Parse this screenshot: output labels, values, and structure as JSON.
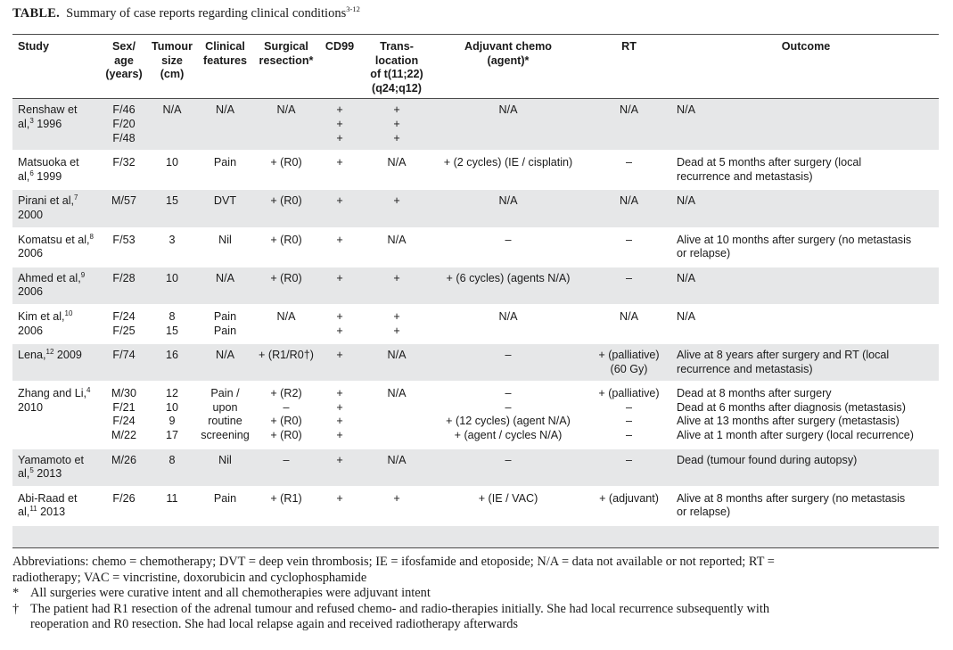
{
  "caption": {
    "label": "TABLE.",
    "text": "Summary of case reports regarding clinical conditions",
    "refs": "3-12"
  },
  "headers": {
    "study": [
      "Study"
    ],
    "sex_age": [
      "Sex/",
      "age",
      "(years)"
    ],
    "tumour_size": [
      "Tumour",
      "size",
      "(cm)"
    ],
    "clinical": [
      "Clinical",
      "features"
    ],
    "surgical": [
      "Surgical",
      "resection*"
    ],
    "cd99": [
      "CD99"
    ],
    "translocation": [
      "Trans-",
      "location",
      "of t(11;22)",
      "(q24;q12)"
    ],
    "chemo": [
      "Adjuvant chemo",
      "(agent)*"
    ],
    "rt": [
      "RT"
    ],
    "outcome": [
      "Outcome"
    ]
  },
  "rows": [
    {
      "study": [
        {
          "t": "Renshaw et"
        },
        {
          "t": "al,",
          "sup": "3",
          "after": " 1996"
        }
      ],
      "sex_age": [
        "F/46",
        "F/20",
        "F/48"
      ],
      "size": [
        "N/A"
      ],
      "clinical": [
        "N/A"
      ],
      "surgical": [
        "N/A"
      ],
      "cd99": [
        "+",
        "+",
        "+"
      ],
      "trans": [
        "+",
        "+",
        "+"
      ],
      "chemo": [
        "N/A"
      ],
      "rt": [
        "N/A"
      ],
      "outcome": [
        "N/A"
      ]
    },
    {
      "study": [
        {
          "t": "Matsuoka et"
        },
        {
          "t": "al,",
          "sup": "6",
          "after": " 1999"
        }
      ],
      "sex_age": [
        "F/32"
      ],
      "size": [
        "10"
      ],
      "clinical": [
        "Pain"
      ],
      "surgical": [
        "+ (R0)"
      ],
      "cd99": [
        "+"
      ],
      "trans": [
        "N/A"
      ],
      "chemo": [
        "+ (2 cycles) (IE / cisplatin)"
      ],
      "rt": [
        "–"
      ],
      "outcome": [
        "Dead at 5 months after surgery (local",
        "recurrence and metastasis)"
      ]
    },
    {
      "study": [
        {
          "t": "Pirani et al,",
          "sup": "7"
        },
        {
          "t": "2000"
        }
      ],
      "sex_age": [
        "M/57"
      ],
      "size": [
        "15"
      ],
      "clinical": [
        "DVT"
      ],
      "surgical": [
        "+ (R0)"
      ],
      "cd99": [
        "+"
      ],
      "trans": [
        "+"
      ],
      "chemo": [
        "N/A"
      ],
      "rt": [
        "N/A"
      ],
      "outcome": [
        "N/A"
      ]
    },
    {
      "study": [
        {
          "t": "Komatsu et al,",
          "sup": "8"
        },
        {
          "t": "2006"
        }
      ],
      "sex_age": [
        "F/53"
      ],
      "size": [
        "3"
      ],
      "clinical": [
        "Nil"
      ],
      "surgical": [
        "+ (R0)"
      ],
      "cd99": [
        "+"
      ],
      "trans": [
        "N/A"
      ],
      "chemo": [
        "–"
      ],
      "rt": [
        "–"
      ],
      "outcome": [
        "Alive at 10 months after surgery (no metastasis",
        "or relapse)"
      ]
    },
    {
      "study": [
        {
          "t": "Ahmed et al,",
          "sup": "9"
        },
        {
          "t": "2006"
        }
      ],
      "sex_age": [
        "F/28"
      ],
      "size": [
        "10"
      ],
      "clinical": [
        "N/A"
      ],
      "surgical": [
        "+ (R0)"
      ],
      "cd99": [
        "+"
      ],
      "trans": [
        "+"
      ],
      "chemo": [
        "+ (6 cycles) (agents N/A)"
      ],
      "rt": [
        "–"
      ],
      "outcome": [
        "N/A"
      ]
    },
    {
      "study": [
        {
          "t": "Kim et al,",
          "sup": "10"
        },
        {
          "t": "2006"
        }
      ],
      "sex_age": [
        "F/24",
        "F/25"
      ],
      "size": [
        "8",
        "15"
      ],
      "clinical": [
        "Pain",
        "Pain"
      ],
      "surgical": [
        "N/A"
      ],
      "cd99": [
        "+",
        "+"
      ],
      "trans": [
        "+",
        "+"
      ],
      "chemo": [
        "N/A"
      ],
      "rt": [
        "N/A"
      ],
      "outcome": [
        "N/A"
      ]
    },
    {
      "study": [
        {
          "t": "Lena,",
          "sup": "12",
          "after": " 2009"
        }
      ],
      "sex_age": [
        "F/74"
      ],
      "size": [
        "16"
      ],
      "clinical": [
        "N/A"
      ],
      "surgical": [
        "+ (R1/R0†)"
      ],
      "cd99": [
        "+"
      ],
      "trans": [
        "N/A"
      ],
      "chemo": [
        "–"
      ],
      "rt": [
        "+ (palliative)",
        "(60 Gy)"
      ],
      "outcome": [
        "Alive at 8 years after surgery and RT (local",
        "recurrence and metastasis)"
      ]
    },
    {
      "study": [
        {
          "t": "Zhang and Li,",
          "sup": "4"
        },
        {
          "t": "2010"
        }
      ],
      "sex_age": [
        "M/30",
        "F/21",
        "F/24",
        "M/22"
      ],
      "size": [
        "12",
        "10",
        "9",
        "17"
      ],
      "clinical": [
        "Pain /",
        "upon",
        "routine",
        "screening"
      ],
      "surgical": [
        "+ (R2)",
        "–",
        "+ (R0)",
        "+ (R0)"
      ],
      "cd99": [
        "+",
        "+",
        "+",
        "+"
      ],
      "trans": [
        "N/A"
      ],
      "chemo": [
        "–",
        "–",
        "+ (12 cycles) (agent N/A)",
        "+ (agent / cycles N/A)"
      ],
      "rt": [
        "+ (palliative)",
        "–",
        "–",
        "–"
      ],
      "outcome": [
        "Dead at 8 months after surgery",
        "Dead at 6 months after diagnosis (metastasis)",
        "Alive at 13 months after surgery (metastasis)",
        "Alive at 1 month after surgery (local recurrence)"
      ]
    },
    {
      "study": [
        {
          "t": "Yamamoto et"
        },
        {
          "t": "al,",
          "sup": "5",
          "after": " 2013"
        }
      ],
      "sex_age": [
        "M/26"
      ],
      "size": [
        "8"
      ],
      "clinical": [
        "Nil"
      ],
      "surgical": [
        "–"
      ],
      "cd99": [
        "+"
      ],
      "trans": [
        "N/A"
      ],
      "chemo": [
        "–"
      ],
      "rt": [
        "–"
      ],
      "outcome": [
        "Dead (tumour found during autopsy)"
      ]
    },
    {
      "study": [
        {
          "t": "Abi-Raad et"
        },
        {
          "t": "al,",
          "sup": "11",
          "after": " 2013"
        }
      ],
      "sex_age": [
        "F/26"
      ],
      "size": [
        "11"
      ],
      "clinical": [
        "Pain"
      ],
      "surgical": [
        "+ (R1)"
      ],
      "cd99": [
        "+"
      ],
      "trans": [
        "+"
      ],
      "chemo": [
        "+ (IE / VAC)"
      ],
      "rt": [
        "+ (adjuvant)"
      ],
      "outcome": [
        "Alive at 8 months after surgery (no metastasis",
        "or relapse)"
      ]
    }
  ],
  "notes": {
    "abbreviations": [
      "Abbreviations: chemo = chemotherapy; DVT = deep vein thrombosis; IE = ifosfamide and etoposide; N/A = data not available or not reported; RT =",
      "radiotherapy; VAC = vincristine, doxorubicin and cyclophosphamide"
    ],
    "star": {
      "sym": "*",
      "text": "All surgeries were curative intent and all chemotherapies were adjuvant intent"
    },
    "dagger": {
      "sym": "†",
      "lines": [
        "The patient had R1 resection of the adrenal tumour and refused chemo- and radio-therapies initially. She had local recurrence subsequently with",
        "reoperation and R0 resection. She had local relapse again and received radiotherapy afterwards"
      ]
    }
  }
}
